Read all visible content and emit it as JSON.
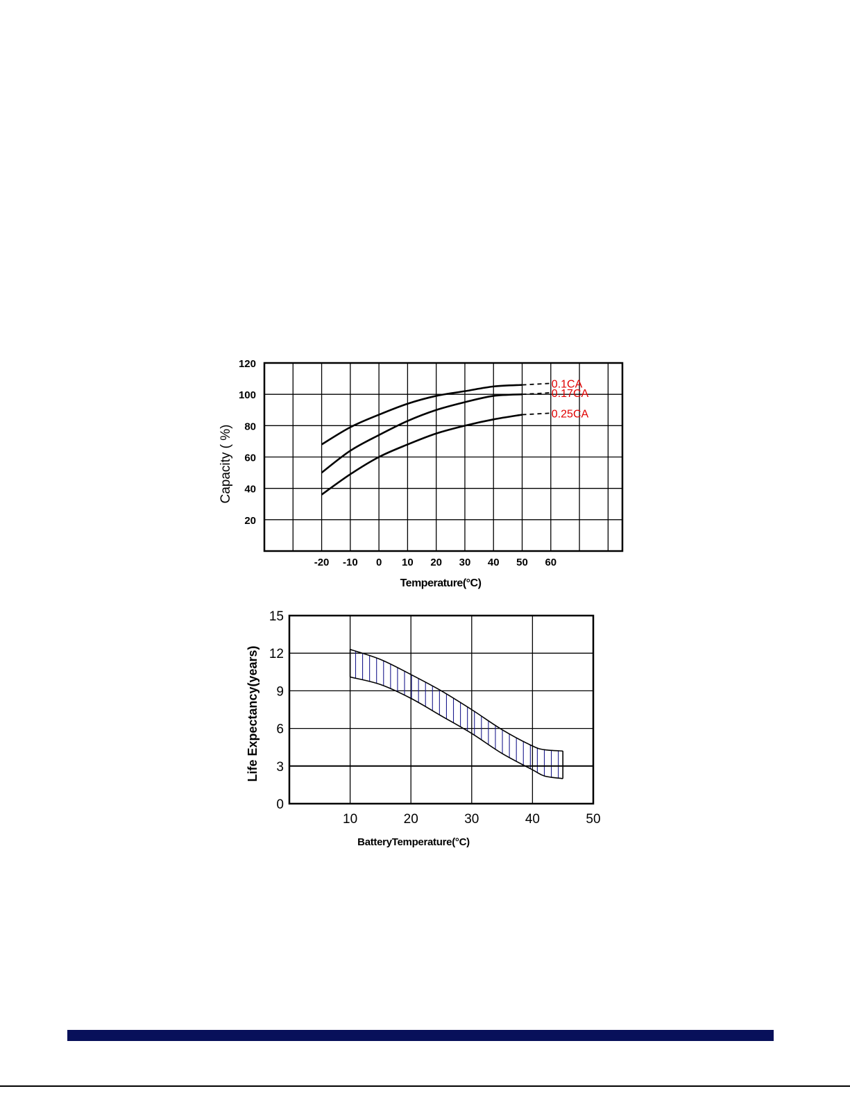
{
  "chart_data": [
    {
      "type": "line",
      "xlabel": "Temperature(°C)",
      "ylabel": "Capacity ( %)",
      "x_ticks": [
        -20,
        -10,
        0,
        10,
        20,
        30,
        40,
        50,
        60
      ],
      "y_ticks": [
        20,
        40,
        60,
        80,
        100,
        120
      ],
      "xlim": [
        -40,
        85
      ],
      "ylim": [
        0,
        120
      ],
      "grid": true,
      "series_color": "#000000",
      "label_color": "#e00000",
      "series": [
        {
          "name": "0.1CA",
          "x": [
            -20,
            -10,
            0,
            10,
            20,
            30,
            40,
            50
          ],
          "y": [
            68,
            79,
            87,
            94,
            99,
            102,
            105,
            106
          ],
          "extension": {
            "x": [
              50,
              60
            ],
            "y": [
              106,
              107
            ],
            "style": "dashed"
          }
        },
        {
          "name": "0.17CA",
          "x": [
            -20,
            -10,
            0,
            10,
            20,
            30,
            40,
            50
          ],
          "y": [
            50,
            64,
            74,
            83,
            90,
            95,
            99,
            100
          ],
          "extension": {
            "x": [
              50,
              60
            ],
            "y": [
              100,
              101
            ],
            "style": "dashed"
          }
        },
        {
          "name": "0.25CA",
          "x": [
            -20,
            -10,
            0,
            10,
            20,
            30,
            40,
            50
          ],
          "y": [
            36,
            49,
            60,
            68,
            75,
            80,
            84,
            87
          ],
          "extension": {
            "x": [
              50,
              60
            ],
            "y": [
              87,
              88
            ],
            "style": "dashed"
          }
        }
      ]
    },
    {
      "type": "area",
      "xlabel": "BatteryTemperature(°C)",
      "ylabel": "Life Expectancy(years)",
      "x_ticks": [
        10,
        20,
        30,
        40,
        50
      ],
      "y_ticks": [
        0,
        3,
        6,
        9,
        12,
        15
      ],
      "xlim": [
        0,
        50
      ],
      "ylim": [
        0,
        15
      ],
      "grid": true,
      "reference_line_y": 3,
      "hatch_color": "#1a1a8c",
      "band": {
        "x": [
          10,
          15,
          20,
          25,
          30,
          35,
          40,
          42,
          45
        ],
        "upper": [
          12.3,
          11.5,
          10.3,
          9.0,
          7.5,
          5.9,
          4.6,
          4.3,
          4.2
        ],
        "lower": [
          10.1,
          9.5,
          8.4,
          7.0,
          5.6,
          4.0,
          2.7,
          2.2,
          2.0
        ]
      }
    }
  ]
}
